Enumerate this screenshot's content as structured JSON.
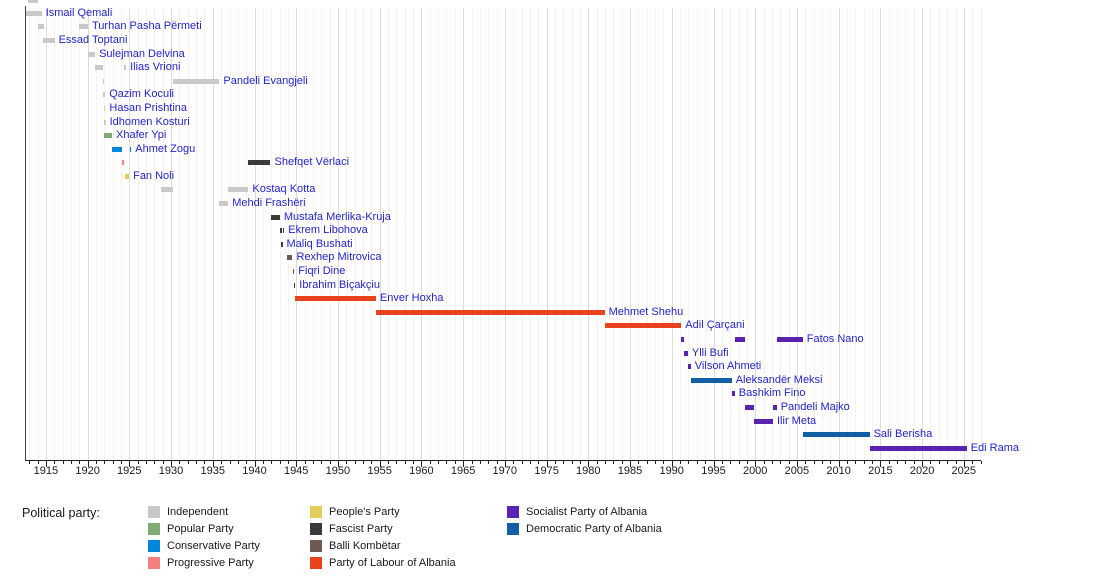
{
  "legend": {
    "title": "Political party:",
    "columns": [
      [
        "Independent",
        "Popular Party",
        "Conservative Party",
        "Progressive Party"
      ],
      [
        "People's Party",
        "Fascist Party",
        "Balli Kombëtar",
        "Party of Labour of Albania"
      ],
      [
        "Socialist Party of Albania",
        "Democratic Party of Albania"
      ]
    ]
  },
  "chart_data": {
    "type": "timeline",
    "description": "Gantt-style timeline of Albanian heads of government with terms colored by political party",
    "x_axis": {
      "start": 1912.5,
      "end": 2027.2,
      "minor_tick_step": 1,
      "major_tick_step": 5,
      "tick_labels": [
        1915,
        1920,
        1925,
        1930,
        1935,
        1940,
        1945,
        1950,
        1955,
        1960,
        1965,
        1970,
        1975,
        1980,
        1985,
        1990,
        1995,
        2000,
        2005,
        2010,
        2015,
        2020,
        2025
      ],
      "grid": "on"
    },
    "parties": {
      "Independent": "#c9c9c9",
      "Popular Party": "#7fac75",
      "Conservative Party": "#0087dc",
      "Progressive Party": "#f28080",
      "People's Party": "#e3ce57",
      "Fascist Party": "#3a3a38",
      "Balli Kombëtar": "#6e5a50",
      "Party of Labour of Albania": "#e8431d",
      "Socialist Party of Albania": "#5b21b0",
      "Democratic Party of Albania": "#135fa5"
    },
    "people": [
      {
        "name": "Ismail Qemali",
        "terms": [
          {
            "start": 1912.55,
            "end": 1914.5,
            "party": "Independent"
          }
        ]
      },
      {
        "name": "Turhan Pasha Përmeti",
        "terms": [
          {
            "start": 1914.1,
            "end": 1914.75,
            "party": "Independent"
          },
          {
            "start": 1918.95,
            "end": 1920.05,
            "party": "Independent"
          }
        ]
      },
      {
        "name": "Essad Toptani",
        "terms": [
          {
            "start": 1914.6,
            "end": 1916.05,
            "party": "Independent"
          }
        ]
      },
      {
        "name": "Sulejman Delvina",
        "terms": [
          {
            "start": 1920.08,
            "end": 1920.9,
            "party": "Independent"
          }
        ]
      },
      {
        "name": "Ilias Vrioni",
        "terms": [
          {
            "start": 1920.9,
            "end": 1921.8,
            "party": "Independent"
          },
          {
            "start": 1924.4,
            "end": 1924.52,
            "party": "Independent"
          }
        ]
      },
      {
        "name": "Pandeli Evangjeli",
        "terms": [
          {
            "start": 1921.8,
            "end": 1921.96,
            "party": "Independent"
          },
          {
            "start": 1930.2,
            "end": 1935.8,
            "party": "Independent"
          }
        ]
      },
      {
        "name": "Qazim Koculi",
        "terms": [
          {
            "start": 1921.9,
            "end": 1921.96,
            "party": "Independent"
          }
        ]
      },
      {
        "name": "Hasan Prishtina",
        "terms": [
          {
            "start": 1921.92,
            "end": 1921.98,
            "party": "Independent"
          }
        ]
      },
      {
        "name": "Idhomen Kosturi",
        "terms": [
          {
            "start": 1921.94,
            "end": 1922.0,
            "party": "Independent"
          }
        ]
      },
      {
        "name": "Xhafer Ypi",
        "terms": [
          {
            "start": 1921.97,
            "end": 1922.92,
            "party": "Popular Party"
          }
        ]
      },
      {
        "name": "Ahmet Zogu",
        "terms": [
          {
            "start": 1922.92,
            "end": 1924.15,
            "party": "Conservative Party"
          },
          {
            "start": 1925.02,
            "end": 1925.12,
            "party": "Conservative Party"
          }
        ]
      },
      {
        "name": "Shefqet Vërlaci",
        "terms": [
          {
            "start": 1924.17,
            "end": 1924.4,
            "party": "Progressive Party"
          },
          {
            "start": 1939.27,
            "end": 1941.92,
            "party": "Fascist Party"
          }
        ]
      },
      {
        "name": "Fan Noli",
        "terms": [
          {
            "start": 1924.45,
            "end": 1924.98,
            "party": "People's Party"
          }
        ]
      },
      {
        "name": "Kostaq Kotta",
        "terms": [
          {
            "start": 1928.8,
            "end": 1930.2,
            "party": "Independent"
          },
          {
            "start": 1936.85,
            "end": 1939.27,
            "party": "Independent"
          }
        ]
      },
      {
        "name": "Mehdi Frashëri",
        "terms": [
          {
            "start": 1935.8,
            "end": 1936.85,
            "party": "Independent"
          }
        ]
      },
      {
        "name": "Mustafa Merlika-Kruja",
        "terms": [
          {
            "start": 1941.92,
            "end": 1943.05,
            "party": "Fascist Party"
          }
        ]
      },
      {
        "name": "Ekrem Libohova",
        "terms": [
          {
            "start": 1943.05,
            "end": 1943.12,
            "party": "Fascist Party"
          },
          {
            "start": 1943.36,
            "end": 1943.5,
            "party": "Fascist Party"
          }
        ]
      },
      {
        "name": "Maliq Bushati",
        "terms": [
          {
            "start": 1943.12,
            "end": 1943.36,
            "party": "Fascist Party"
          }
        ]
      },
      {
        "name": "Rexhep Mitrovica",
        "terms": [
          {
            "start": 1943.84,
            "end": 1944.55,
            "party": "Balli Kombëtar"
          }
        ]
      },
      {
        "name": "Fiqri Dine",
        "terms": [
          {
            "start": 1944.55,
            "end": 1944.66,
            "party": "Balli Kombëtar"
          }
        ]
      },
      {
        "name": "Ibrahim Biçakçiu",
        "terms": [
          {
            "start": 1944.68,
            "end": 1944.82,
            "party": "Fascist Party"
          }
        ]
      },
      {
        "name": "Enver Hoxha",
        "terms": [
          {
            "start": 1944.82,
            "end": 1954.55,
            "party": "Party of Labour of Albania"
          }
        ]
      },
      {
        "name": "Mehmet Shehu",
        "terms": [
          {
            "start": 1954.55,
            "end": 1981.96,
            "party": "Party of Labour of Albania"
          }
        ]
      },
      {
        "name": "Adil Çarçani",
        "terms": [
          {
            "start": 1981.96,
            "end": 1991.15,
            "party": "Party of Labour of Albania"
          }
        ]
      },
      {
        "name": "Fatos Nano",
        "terms": [
          {
            "start": 1991.15,
            "end": 1991.42,
            "party": "Socialist Party of Albania"
          },
          {
            "start": 1997.56,
            "end": 1998.75,
            "party": "Socialist Party of Albania"
          },
          {
            "start": 2002.58,
            "end": 2005.7,
            "party": "Socialist Party of Albania"
          }
        ]
      },
      {
        "name": "Ylli Bufi",
        "terms": [
          {
            "start": 1991.43,
            "end": 1991.94,
            "party": "Socialist Party of Albania"
          }
        ]
      },
      {
        "name": "Vilson Ahmeti",
        "terms": [
          {
            "start": 1991.94,
            "end": 1992.28,
            "party": "Socialist Party of Albania"
          }
        ]
      },
      {
        "name": "Aleksandër Meksi",
        "terms": [
          {
            "start": 1992.28,
            "end": 1997.19,
            "party": "Democratic Party of Albania"
          }
        ]
      },
      {
        "name": "Bashkim Fino",
        "terms": [
          {
            "start": 1997.19,
            "end": 1997.56,
            "party": "Socialist Party of Albania"
          }
        ]
      },
      {
        "name": "Pandeli Majko",
        "terms": [
          {
            "start": 1998.75,
            "end": 1999.83,
            "party": "Socialist Party of Albania"
          },
          {
            "start": 2002.14,
            "end": 2002.58,
            "party": "Socialist Party of Albania"
          }
        ]
      },
      {
        "name": "Ilir Meta",
        "terms": [
          {
            "start": 1999.83,
            "end": 2002.14,
            "party": "Socialist Party of Albania"
          }
        ]
      },
      {
        "name": "Sali Berisha",
        "terms": [
          {
            "start": 2005.7,
            "end": 2013.71,
            "party": "Democratic Party of Albania"
          }
        ]
      },
      {
        "name": "Edi Rama",
        "terms": [
          {
            "start": 2013.71,
            "end": 2025.35,
            "party": "Socialist Party of Albania"
          }
        ]
      }
    ]
  }
}
